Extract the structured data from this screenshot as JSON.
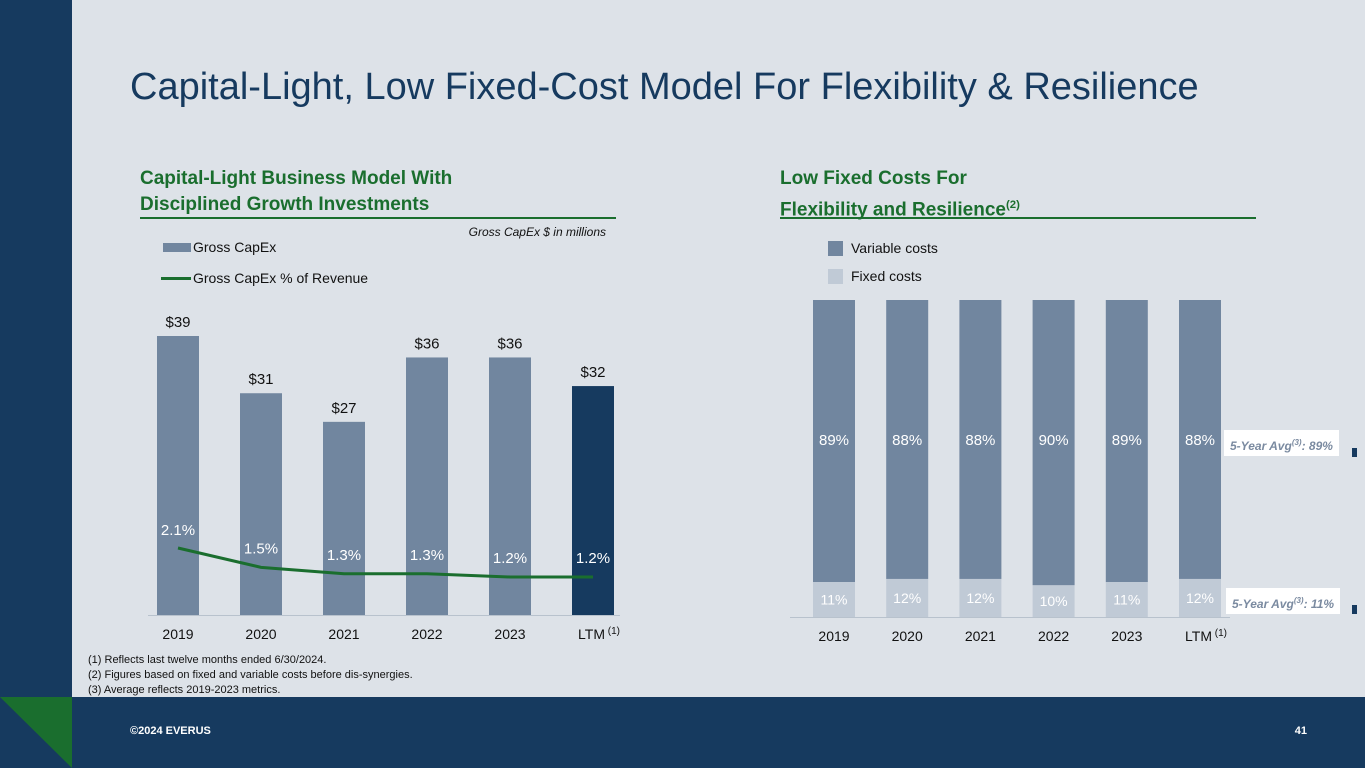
{
  "slide": {
    "title": "Capital-Light, Low Fixed-Cost Model For Flexibility & Resilience",
    "copyright": "©2024 EVERUS",
    "page_number": "41"
  },
  "left_section": {
    "heading_line1": "Capital-Light Business Model With",
    "heading_line2": "Disciplined Growth Investments",
    "unit_note": "Gross CapEx $ in millions",
    "legend_bar": "Gross CapEx",
    "legend_line": "Gross CapEx % of Revenue"
  },
  "right_section": {
    "heading_line1": "Low Fixed Costs For",
    "heading_line2": "Flexibility and Resilience",
    "heading_sup": "(2)",
    "legend_variable": "Variable costs",
    "legend_fixed": "Fixed costs",
    "avg_variable_prefix": "5-Year Avg",
    "avg_variable_sup": "(3)",
    "avg_variable_value": ": 89%",
    "avg_fixed_prefix": "5-Year Avg",
    "avg_fixed_sup": "(3)",
    "avg_fixed_value": ": 11%"
  },
  "footnotes": {
    "n1": "(1)  Reflects last twelve months ended 6/30/2024.",
    "n2": "(2)  Figures based on fixed and variable costs before dis-synergies.",
    "n3": "(3)  Average reflects 2019-2023 metrics."
  },
  "colors": {
    "navy": "#163a5f",
    "bar_gray": "#71869f",
    "fixed_gray": "#c0cad6",
    "green": "#1a6e2e",
    "background": "#dde2e8"
  },
  "chart_data": [
    {
      "type": "bar",
      "title": "Capital-Light Business Model With Disciplined Growth Investments",
      "categories": [
        "2019",
        "2020",
        "2021",
        "2022",
        "2023",
        "LTM"
      ],
      "category_sup": [
        "",
        "",
        "",
        "",
        "",
        "(1)"
      ],
      "series": [
        {
          "name": "Gross CapEx",
          "values": [
            39,
            31,
            27,
            36,
            36,
            32
          ],
          "labels": [
            "$39",
            "$31",
            "$27",
            "$36",
            "$36",
            "$32"
          ]
        },
        {
          "name": "Gross CapEx % of Revenue",
          "type": "line",
          "values": [
            2.1,
            1.5,
            1.3,
            1.3,
            1.2,
            1.2
          ],
          "labels": [
            "2.1%",
            "1.5%",
            "1.3%",
            "1.3%",
            "1.2%",
            "1.2%"
          ]
        }
      ],
      "highlight_category": "LTM",
      "ylabel": "Gross CapEx $ in millions",
      "ylim": [
        0,
        39
      ]
    },
    {
      "type": "bar",
      "stacked": true,
      "percent": true,
      "title": "Low Fixed Costs For Flexibility and Resilience",
      "categories": [
        "2019",
        "2020",
        "2021",
        "2022",
        "2023",
        "LTM"
      ],
      "category_sup": [
        "",
        "",
        "",
        "",
        "",
        "(1)"
      ],
      "series": [
        {
          "name": "Fixed costs",
          "values": [
            11,
            12,
            12,
            10,
            11,
            12
          ],
          "labels": [
            "11%",
            "12%",
            "12%",
            "10%",
            "11%",
            "12%"
          ]
        },
        {
          "name": "Variable costs",
          "values": [
            89,
            88,
            88,
            90,
            89,
            88
          ],
          "labels": [
            "89%",
            "88%",
            "88%",
            "90%",
            "89%",
            "88%"
          ]
        }
      ],
      "ylim": [
        0,
        100
      ]
    }
  ]
}
